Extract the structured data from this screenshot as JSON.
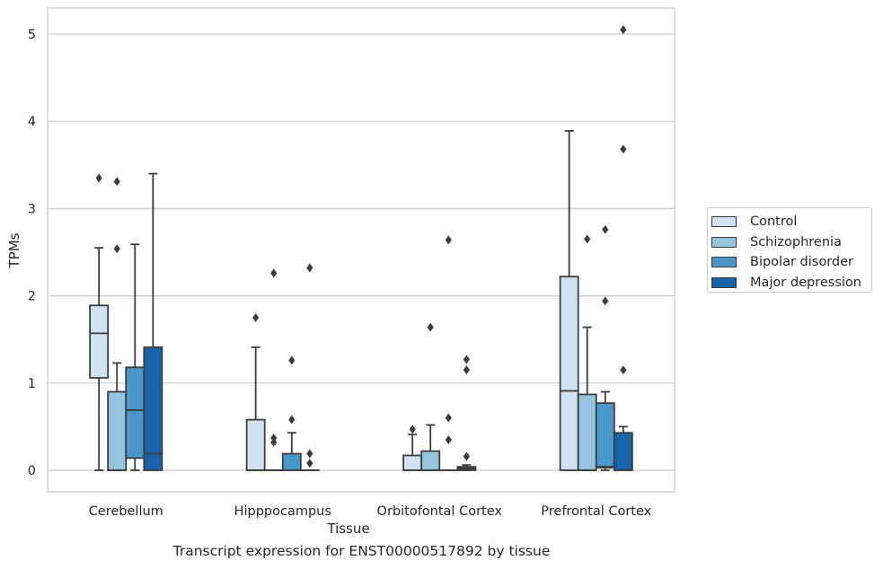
{
  "caption": "Transcript expression for ENST00000517892 by tissue",
  "chart_data": {
    "type": "boxplot",
    "xlabel": "Tissue",
    "ylabel": "TPMs",
    "ylim": [
      -0.25,
      5.3
    ],
    "yticks": [
      0,
      1,
      2,
      3,
      4,
      5
    ],
    "grid": "horizontal",
    "legend_position": "right",
    "categories": [
      "Cerebellum",
      "Hipppocampus",
      "Orbitofontal Cortex",
      "Prefrontal Cortex"
    ],
    "series": [
      {
        "name": "Control",
        "color": "#d0e1f2",
        "boxes": [
          {
            "whislo": 0.0,
            "q1": 1.06,
            "med": 1.57,
            "q3": 1.89,
            "whishi": 2.55,
            "fliers": [
              3.35
            ]
          },
          {
            "whislo": 0.0,
            "q1": 0.0,
            "med": 0.0,
            "q3": 0.58,
            "whishi": 1.41,
            "fliers": [
              1.75
            ]
          },
          {
            "whislo": 0.0,
            "q1": 0.0,
            "med": 0.0,
            "q3": 0.17,
            "whishi": 0.41,
            "fliers": [
              0.47
            ]
          },
          {
            "whislo": 0.0,
            "q1": 0.0,
            "med": 0.91,
            "q3": 2.22,
            "whishi": 3.89,
            "fliers": []
          }
        ]
      },
      {
        "name": "Schizophrenia",
        "color": "#94c4df",
        "boxes": [
          {
            "whislo": 0.0,
            "q1": 0.0,
            "med": 0.0,
            "q3": 0.9,
            "whishi": 1.23,
            "fliers": [
              2.54,
              3.31
            ]
          },
          {
            "whislo": 0.0,
            "q1": 0.0,
            "med": 0.0,
            "q3": 0.0,
            "whishi": 0.0,
            "fliers": [
              0.32,
              0.37,
              2.26
            ]
          },
          {
            "whislo": 0.0,
            "q1": 0.0,
            "med": 0.0,
            "q3": 0.22,
            "whishi": 0.52,
            "fliers": [
              1.64
            ]
          },
          {
            "whislo": 0.0,
            "q1": 0.0,
            "med": 0.0,
            "q3": 0.87,
            "whishi": 1.64,
            "fliers": [
              2.65
            ]
          }
        ]
      },
      {
        "name": "Bipolar disorder",
        "color": "#4a98c9",
        "boxes": [
          {
            "whislo": 0.0,
            "q1": 0.14,
            "med": 0.69,
            "q3": 1.18,
            "whishi": 2.59,
            "fliers": []
          },
          {
            "whislo": 0.0,
            "q1": 0.0,
            "med": 0.0,
            "q3": 0.19,
            "whishi": 0.43,
            "fliers": [
              0.58,
              1.26
            ]
          },
          {
            "whislo": 0.0,
            "q1": 0.0,
            "med": 0.0,
            "q3": 0.0,
            "whishi": 0.0,
            "fliers": [
              0.35,
              0.6,
              2.64
            ]
          },
          {
            "whislo": 0.0,
            "q1": 0.03,
            "med": 0.04,
            "q3": 0.77,
            "whishi": 0.9,
            "fliers": [
              1.94,
              2.76
            ]
          }
        ]
      },
      {
        "name": "Major depression",
        "color": "#1764ab",
        "boxes": [
          {
            "whislo": 0.0,
            "q1": 0.0,
            "med": 0.19,
            "q3": 1.41,
            "whishi": 3.4,
            "fliers": []
          },
          {
            "whislo": 0.0,
            "q1": 0.0,
            "med": 0.0,
            "q3": 0.0,
            "whishi": 0.0,
            "fliers": [
              0.08,
              0.19,
              2.32
            ]
          },
          {
            "whislo": 0.0,
            "q1": 0.0,
            "med": 0.02,
            "q3": 0.04,
            "whishi": 0.06,
            "fliers": [
              0.16,
              1.15,
              1.27
            ]
          },
          {
            "whislo": 0.0,
            "q1": 0.0,
            "med": 0.0,
            "q3": 0.43,
            "whishi": 0.5,
            "fliers": [
              1.15,
              3.68,
              5.05
            ]
          }
        ]
      }
    ]
  }
}
